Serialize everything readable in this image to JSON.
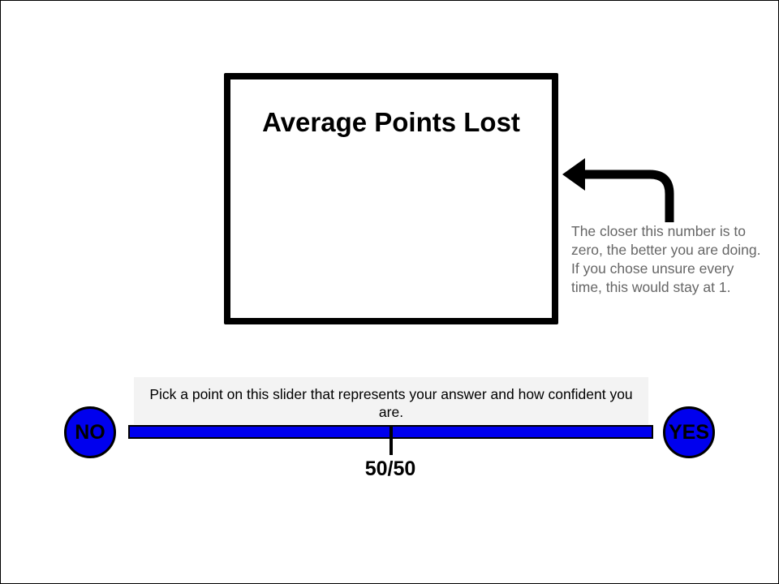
{
  "score_panel": {
    "title": "Average Points Lost"
  },
  "annotation": {
    "note": "The closer this number is to zero, the better you are doing. If you chose unsure every time, this would stay at 1.",
    "icon": "arrow-left-curved-icon"
  },
  "slider": {
    "instruction": "Pick a point on this slider that represents your answer and how confident you are.",
    "left_label": "NO",
    "right_label": "YES",
    "mid_label": "50/50",
    "value": 0.5
  },
  "colors": {
    "track": "#0000ee",
    "note_text": "#666666",
    "instruction_bg": "#f3f3f3"
  }
}
